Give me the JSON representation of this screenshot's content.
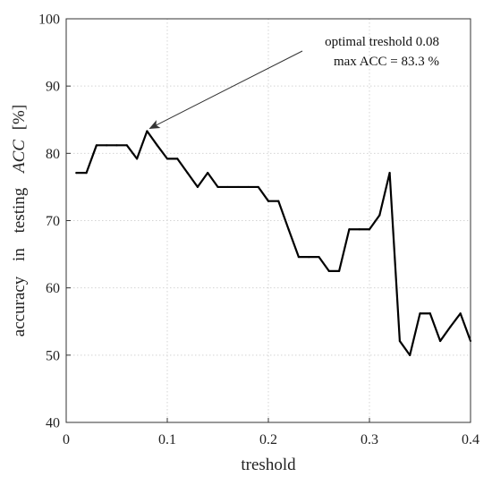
{
  "chart_data": {
    "type": "line",
    "xlabel": "treshold",
    "ylabel_parts": [
      "accuracy",
      "in",
      "testing"
    ],
    "ylabel_math": "ACC",
    "ylabel_unit": "[%]",
    "xlim": [
      0,
      0.4
    ],
    "ylim": [
      40,
      100
    ],
    "xticks": [
      0,
      0.1,
      0.2,
      0.3,
      0.4
    ],
    "xtick_labels": [
      "0",
      "0.1",
      "0.2",
      "0.3",
      "0.4"
    ],
    "yticks": [
      40,
      50,
      60,
      70,
      80,
      90,
      100
    ],
    "ytick_labels": [
      "40",
      "50",
      "60",
      "70",
      "80",
      "90",
      "100"
    ],
    "grid": true,
    "series": [
      {
        "x": [
          0.01,
          0.02,
          0.03,
          0.04,
          0.05,
          0.06,
          0.07,
          0.08,
          0.09,
          0.1,
          0.11,
          0.12,
          0.13,
          0.14,
          0.15,
          0.16,
          0.17,
          0.18,
          0.19,
          0.2,
          0.21,
          0.22,
          0.23,
          0.24,
          0.25,
          0.26,
          0.27,
          0.28,
          0.29,
          0.3,
          0.31,
          0.32,
          0.33,
          0.34,
          0.35,
          0.36,
          0.37,
          0.38,
          0.39,
          0.4
        ],
        "y": [
          77.1,
          77.1,
          81.2,
          81.2,
          81.2,
          81.2,
          79.2,
          83.3,
          81.2,
          79.2,
          79.2,
          77.1,
          75.0,
          77.1,
          75.0,
          75.0,
          75.0,
          75.0,
          75.0,
          72.9,
          72.9,
          68.7,
          64.6,
          64.6,
          64.6,
          62.5,
          62.5,
          68.7,
          68.7,
          68.7,
          70.8,
          77.1,
          52.1,
          50.0,
          56.2,
          56.2,
          52.1,
          54.2,
          56.2,
          52.1
        ]
      }
    ],
    "annotation": {
      "lines": [
        "optimal treshold 0.08",
        "max ACC = 83.3 %"
      ],
      "point": [
        0.08,
        83.3
      ]
    }
  }
}
